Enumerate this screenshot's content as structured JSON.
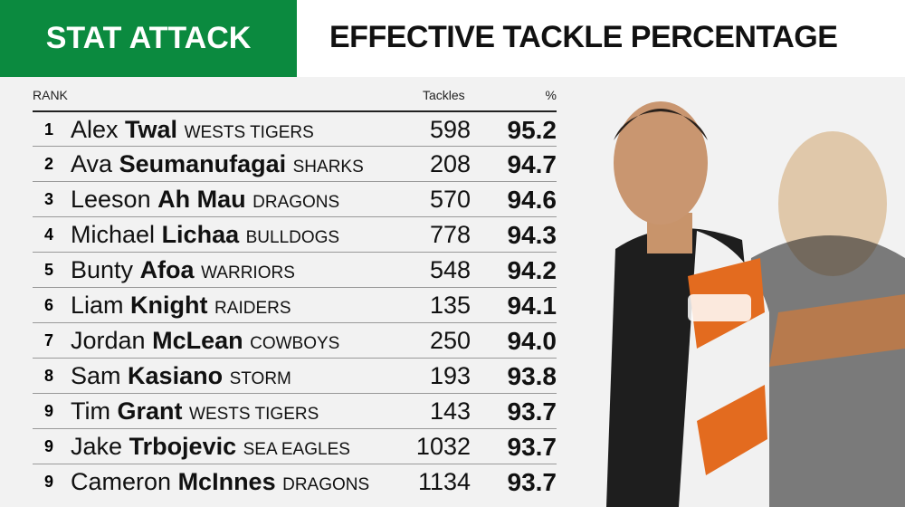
{
  "header": {
    "badge": "STAT ATTACK",
    "title": "EFFECTIVE TACKLE PERCENTAGE"
  },
  "table": {
    "columns": [
      "RANK",
      "Tackles",
      "%"
    ],
    "rows": [
      {
        "rank": "1",
        "first": "Alex",
        "last": "Twal",
        "team": "WESTS TIGERS",
        "tackles": "598",
        "pct": "95.2"
      },
      {
        "rank": "2",
        "first": "Ava",
        "last": "Seumanufagai",
        "team": "SHARKS",
        "tackles": "208",
        "pct": "94.7"
      },
      {
        "rank": "3",
        "first": "Leeson",
        "last": "Ah Mau",
        "team": "DRAGONS",
        "tackles": "570",
        "pct": "94.6"
      },
      {
        "rank": "4",
        "first": "Michael",
        "last": "Lichaa",
        "team": "BULLDOGS",
        "tackles": "778",
        "pct": "94.3"
      },
      {
        "rank": "5",
        "first": "Bunty",
        "last": "Afoa",
        "team": "WARRIORS",
        "tackles": "548",
        "pct": "94.2"
      },
      {
        "rank": "6",
        "first": "Liam",
        "last": "Knight",
        "team": "RAIDERS",
        "tackles": "135",
        "pct": "94.1"
      },
      {
        "rank": "7",
        "first": "Jordan",
        "last": "McLean",
        "team": "COWBOYS",
        "tackles": "250",
        "pct": "94.0"
      },
      {
        "rank": "8",
        "first": "Sam",
        "last": "Kasiano",
        "team": "STORM",
        "tackles": "193",
        "pct": "93.8"
      },
      {
        "rank": "9",
        "first": "Tim",
        "last": "Grant",
        "team": "WESTS TIGERS",
        "tackles": "143",
        "pct": "93.7"
      },
      {
        "rank": "9",
        "first": "Jake",
        "last": "Trbojevic",
        "team": "SEA EAGLES",
        "tackles": "1032",
        "pct": "93.7"
      },
      {
        "rank": "9",
        "first": "Cameron",
        "last": "McInnes",
        "team": "DRAGONS",
        "tackles": "1134",
        "pct": "93.7"
      }
    ]
  }
}
